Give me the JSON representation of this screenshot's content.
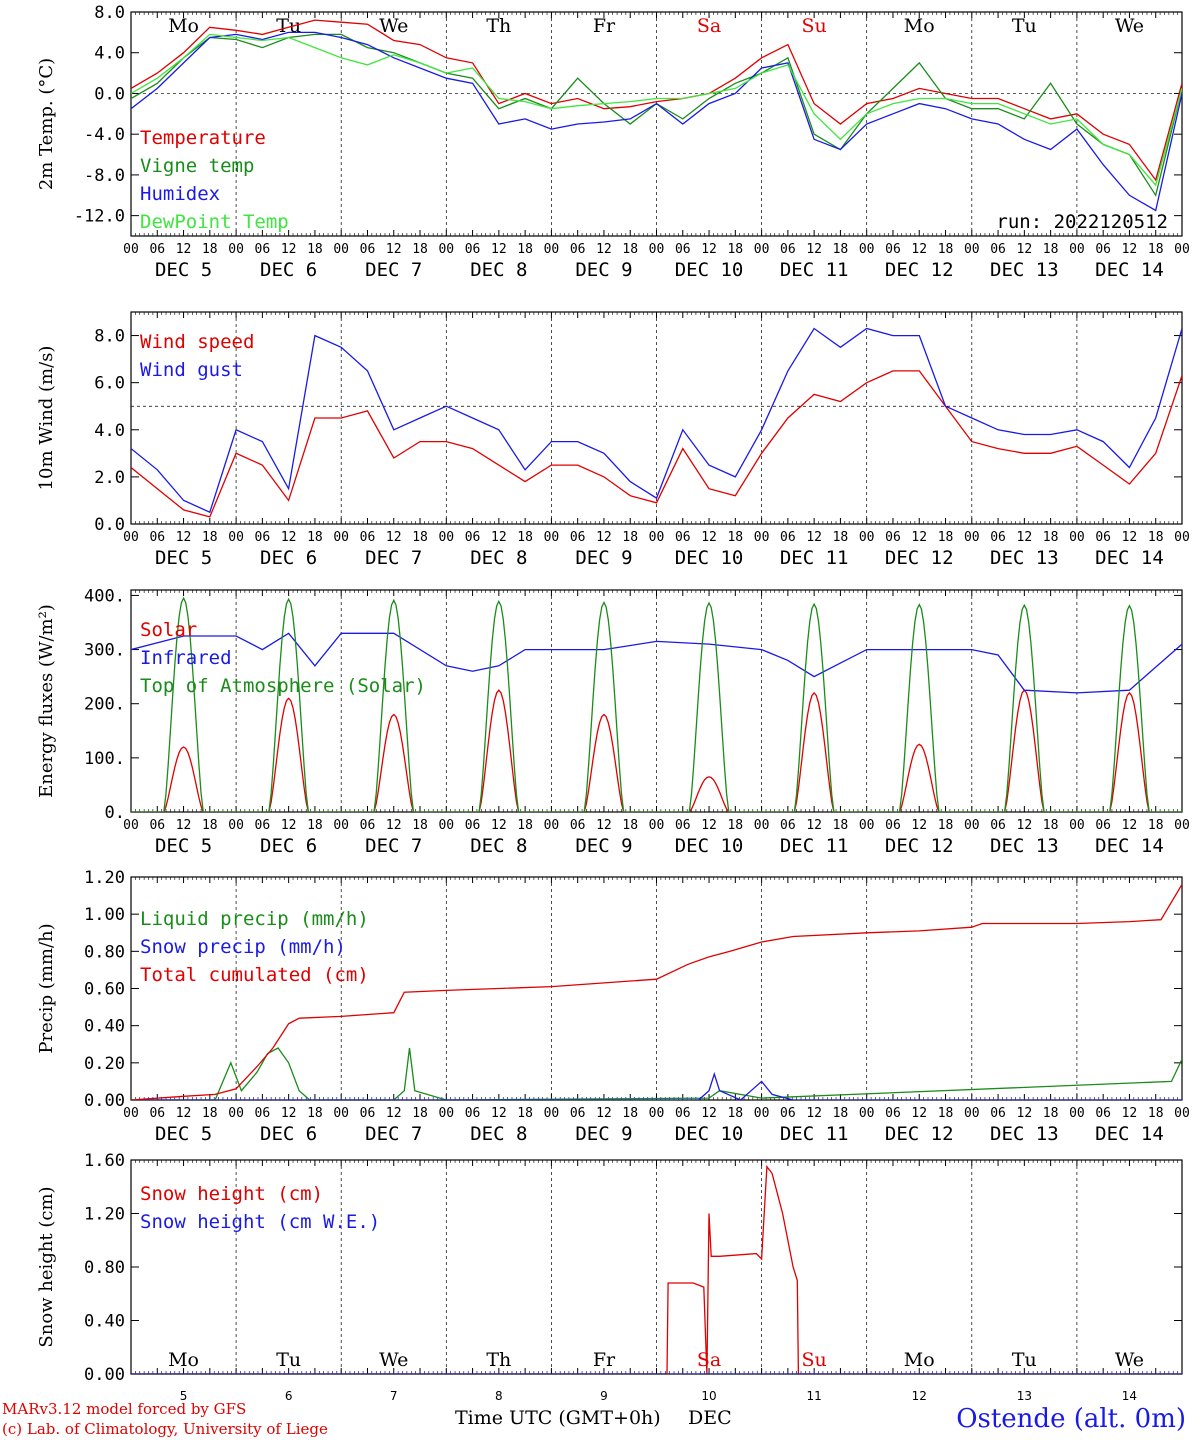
{
  "run_label": "run: 2022120512",
  "hour_ticks": [
    "00",
    "06",
    "12",
    "18"
  ],
  "days": [
    {
      "dow": "Mo",
      "date": "DEC  5",
      "num": "5",
      "weekend": false
    },
    {
      "dow": "Tu",
      "date": "DEC  6",
      "num": "6",
      "weekend": false
    },
    {
      "dow": "We",
      "date": "DEC  7",
      "num": "7",
      "weekend": false
    },
    {
      "dow": "Th",
      "date": "DEC  8",
      "num": "8",
      "weekend": false
    },
    {
      "dow": "Fr",
      "date": "DEC  9",
      "num": "9",
      "weekend": false
    },
    {
      "dow": "Sa",
      "date": "DEC 10",
      "num": "10",
      "weekend": true
    },
    {
      "dow": "Su",
      "date": "DEC 11",
      "num": "11",
      "weekend": true
    },
    {
      "dow": "Mo",
      "date": "DEC 12",
      "num": "12",
      "weekend": false
    },
    {
      "dow": "Tu",
      "date": "DEC 13",
      "num": "13",
      "weekend": false
    },
    {
      "dow": "We",
      "date": "DEC 14",
      "num": "14",
      "weekend": false
    }
  ],
  "colors": {
    "red": "#e00000",
    "green": "#1a8c1a",
    "blue": "#1a1ae6",
    "lime": "#3ee63e",
    "weekend": "#e00000"
  },
  "footer": {
    "model": "MARv3.12 model forced by GFS",
    "credit": "(c) Lab. of Climatology, University of Liege",
    "xlabel": "Time UTC (GMT+0h)",
    "xlabel2": "DEC",
    "station": "Ostende (alt. 0m)"
  },
  "chart_data": [
    {
      "type": "line",
      "ylabel": "2m Temp. (°C)",
      "ylim": [
        -14,
        8
      ],
      "yticks": [
        "8.0",
        "4.0",
        "0.0",
        "-4.0",
        "-8.0",
        "-12.0"
      ],
      "ytick_values": [
        8,
        4,
        0,
        -4,
        -8,
        -12
      ],
      "ref_line": 0,
      "x_days": [
        0,
        0.25,
        0.5,
        0.75,
        1,
        1.25,
        1.5,
        1.75,
        2,
        2.25,
        2.5,
        2.75,
        3,
        3.25,
        3.5,
        3.75,
        4,
        4.25,
        4.5,
        4.75,
        5,
        5.25,
        5.5,
        5.75,
        6,
        6.25,
        6.5,
        6.75,
        7,
        7.25,
        7.5,
        7.75,
        8,
        8.25,
        8.5,
        8.75,
        9,
        9.25,
        9.5,
        9.75,
        10
      ],
      "series": [
        {
          "name": "Temperature",
          "color": "red",
          "values": [
            0.5,
            2,
            4,
            6.5,
            6.2,
            5.8,
            6.5,
            7.2,
            7,
            6.8,
            5.2,
            4.8,
            3.5,
            3,
            -1,
            0,
            -1,
            -0.5,
            -1.5,
            -1.3,
            -0.8,
            -0.5,
            0,
            1.5,
            3.5,
            4.8,
            -1,
            -3,
            -1,
            -0.5,
            0.5,
            0,
            -0.5,
            -0.5,
            -1.5,
            -2.5,
            -2,
            -4,
            -5,
            -8.5,
            1
          ]
        },
        {
          "name": "Vigne temp",
          "color": "green",
          "values": [
            -0.5,
            1,
            3.5,
            5.5,
            5.3,
            4.5,
            5.5,
            5.8,
            5.8,
            4.5,
            4,
            3,
            2,
            1.5,
            -1.5,
            -0.5,
            -1.5,
            1.5,
            -1,
            -3,
            -1,
            -2.5,
            -0.5,
            1,
            2,
            3.5,
            -4,
            -5.5,
            -2,
            0.5,
            3,
            -0.5,
            -1.5,
            -1.5,
            -2.5,
            1,
            -3,
            -5,
            -6,
            -10,
            0.5
          ]
        },
        {
          "name": "Humidex",
          "color": "blue",
          "values": [
            -1.5,
            0.5,
            3,
            5.5,
            5.8,
            5.3,
            6,
            6,
            5.5,
            4.8,
            3.5,
            2.5,
            1.5,
            1,
            -3,
            -2.5,
            -3.5,
            -3,
            -2.8,
            -2.5,
            -1,
            -3,
            -1,
            0,
            2.5,
            3,
            -4.5,
            -5.5,
            -3,
            -2,
            -1,
            -1.5,
            -2.5,
            -3,
            -4.5,
            -5.5,
            -3.5,
            -7,
            -10,
            -11.5,
            0
          ]
        },
        {
          "name": "DewPoint Temp",
          "color": "lime",
          "values": [
            0,
            1.5,
            3.5,
            5.8,
            5.5,
            5.2,
            5.5,
            4.5,
            3.5,
            2.8,
            3.8,
            3,
            2,
            2.5,
            -0.5,
            -0.8,
            -1.5,
            -1.2,
            -1,
            -0.8,
            -0.5,
            -0.5,
            0,
            0.5,
            2,
            2.8,
            -2,
            -4.5,
            -2,
            -1,
            -0.5,
            -0.5,
            -1,
            -1,
            -2,
            -3,
            -2.5,
            -5,
            -6,
            -9,
            0.5
          ]
        }
      ],
      "legend_placement": "left"
    },
    {
      "type": "line",
      "ylabel": "10m Wind (m/s)",
      "ylim": [
        0,
        9
      ],
      "yticks": [
        "8.0",
        "6.0",
        "4.0",
        "2.0",
        "0.0"
      ],
      "ytick_values": [
        8,
        6,
        4,
        2,
        0
      ],
      "ref_line": 5,
      "x_days": [
        0,
        0.25,
        0.5,
        0.75,
        1,
        1.25,
        1.5,
        1.75,
        2,
        2.25,
        2.5,
        2.75,
        3,
        3.25,
        3.5,
        3.75,
        4,
        4.25,
        4.5,
        4.75,
        5,
        5.25,
        5.5,
        5.75,
        6,
        6.25,
        6.5,
        6.75,
        7,
        7.25,
        7.5,
        7.75,
        8,
        8.25,
        8.5,
        8.75,
        9,
        9.25,
        9.5,
        9.75,
        10
      ],
      "series": [
        {
          "name": "Wind speed",
          "color": "red",
          "values": [
            2.4,
            1.5,
            0.6,
            0.3,
            3,
            2.5,
            1,
            4.5,
            4.5,
            4.8,
            2.8,
            3.5,
            3.5,
            3.2,
            2.5,
            1.8,
            2.5,
            2.5,
            2,
            1.2,
            0.9,
            3.2,
            1.5,
            1.2,
            3,
            4.5,
            5.5,
            5.2,
            6,
            6.5,
            6.5,
            5,
            3.5,
            3.2,
            3,
            3,
            3.3,
            2.5,
            1.7,
            3,
            6.3
          ]
        },
        {
          "name": "Wind gust",
          "color": "blue",
          "values": [
            3.2,
            2.3,
            1,
            0.5,
            4,
            3.5,
            1.5,
            8,
            7.5,
            6.5,
            4,
            4.5,
            5,
            4.5,
            4,
            2.3,
            3.5,
            3.5,
            3,
            1.8,
            1.1,
            4,
            2.5,
            2,
            4,
            6.5,
            8.3,
            7.5,
            8.3,
            8,
            8,
            5,
            4.5,
            4,
            3.8,
            3.8,
            4,
            3.5,
            2.4,
            4.5,
            8.3
          ]
        }
      ],
      "legend_placement": "left"
    },
    {
      "type": "line",
      "ylabel": "Energy fluxes (W/m²)",
      "ylim": [
        0,
        410
      ],
      "yticks": [
        "400.",
        "300.",
        "200.",
        "100.",
        "0."
      ],
      "ytick_values": [
        400,
        300,
        200,
        100,
        0
      ],
      "series": [
        {
          "name": "Solar",
          "color": "red",
          "day_peaks": [
            120,
            210,
            180,
            225,
            180,
            65,
            220,
            125,
            225,
            220
          ]
        },
        {
          "name": "Infrared",
          "color": "blue",
          "x_days": [
            0,
            0.5,
            1,
            1.25,
            1.5,
            1.75,
            2,
            2.5,
            3,
            3.25,
            3.5,
            3.75,
            4,
            4.5,
            5,
            5.5,
            6,
            6.25,
            6.5,
            6.75,
            7,
            7.5,
            8,
            8.25,
            8.5,
            9,
            9.5,
            10
          ],
          "values": [
            300,
            325,
            325,
            300,
            330,
            270,
            330,
            330,
            270,
            260,
            270,
            300,
            300,
            300,
            315,
            310,
            300,
            280,
            250,
            275,
            300,
            300,
            300,
            290,
            225,
            220,
            225,
            310
          ]
        },
        {
          "name": "Top of Atmosphere (Solar)",
          "color": "green",
          "day_peaks": [
            395,
            393,
            391,
            389,
            387,
            386,
            384,
            383,
            382,
            381
          ]
        }
      ],
      "legend_placement": "left"
    },
    {
      "type": "line",
      "ylabel": "Precip (mm/h)",
      "ylim": [
        0,
        1.2
      ],
      "yticks": [
        "1.20",
        "1.00",
        "0.80",
        "0.60",
        "0.40",
        "0.20",
        "0.00"
      ],
      "ytick_values": [
        1.2,
        1,
        0.8,
        0.6,
        0.4,
        0.2,
        0
      ],
      "series": [
        {
          "name": "Liquid precip (mm/h)",
          "color": "green",
          "x_days": [
            0,
            0.8,
            0.95,
            1.05,
            1.2,
            1.3,
            1.4,
            1.5,
            1.6,
            1.7,
            2.5,
            2.6,
            2.65,
            2.7,
            3,
            5.5,
            5.6,
            6,
            9.9,
            10
          ],
          "values": [
            0,
            0,
            0.2,
            0.05,
            0.15,
            0.25,
            0.28,
            0.2,
            0.05,
            0,
            0,
            0.05,
            0.28,
            0.05,
            0,
            0.01,
            0.05,
            0.01,
            0.1,
            0.22
          ]
        },
        {
          "name": "Snow precip (mm/h)",
          "color": "blue",
          "x_days": [
            0,
            5.4,
            5.5,
            5.55,
            5.6,
            5.8,
            5.9,
            6,
            6.1,
            6.3,
            10
          ],
          "values": [
            0,
            0,
            0.05,
            0.14,
            0.05,
            0,
            0.05,
            0.1,
            0.03,
            0,
            0
          ]
        },
        {
          "name": "Total cumulated (cm)",
          "color": "red",
          "x_days": [
            0,
            0.5,
            0.8,
            1,
            1.2,
            1.35,
            1.5,
            1.6,
            2,
            2.5,
            2.6,
            3,
            4,
            5,
            5.3,
            5.5,
            5.7,
            6,
            6.3,
            7,
            7.5,
            8,
            8.1,
            9,
            9.5,
            9.8,
            10
          ],
          "values": [
            0,
            0.02,
            0.03,
            0.06,
            0.18,
            0.28,
            0.41,
            0.44,
            0.45,
            0.47,
            0.58,
            0.59,
            0.61,
            0.65,
            0.73,
            0.77,
            0.8,
            0.85,
            0.88,
            0.9,
            0.91,
            0.93,
            0.95,
            0.95,
            0.96,
            0.97,
            1.16
          ]
        }
      ],
      "legend_placement": "left"
    },
    {
      "type": "line",
      "ylabel": "Snow height (cm)",
      "ylim": [
        0,
        1.6
      ],
      "yticks": [
        "1.60",
        "1.20",
        "0.80",
        "0.40",
        "0.00"
      ],
      "ytick_values": [
        1.6,
        1.2,
        0.8,
        0.4,
        0
      ],
      "series": [
        {
          "name": "Snow height (cm)",
          "color": "red",
          "x_days": [
            0,
            5.1,
            5.11,
            5.35,
            5.45,
            5.48,
            5.5,
            5.52,
            5.6,
            5.95,
            6.0,
            6.05,
            6.1,
            6.2,
            6.3,
            6.34,
            6.35,
            10
          ],
          "values": [
            0,
            0,
            0.68,
            0.68,
            0.65,
            0,
            1.2,
            0.88,
            0.88,
            0.9,
            0.86,
            1.55,
            1.5,
            1.2,
            0.8,
            0.7,
            0,
            0
          ]
        },
        {
          "name": "Snow height (cm W.E.)",
          "color": "blue",
          "x_days": [
            0,
            10
          ],
          "values": [
            0,
            0
          ]
        }
      ],
      "legend_placement": "left"
    }
  ]
}
